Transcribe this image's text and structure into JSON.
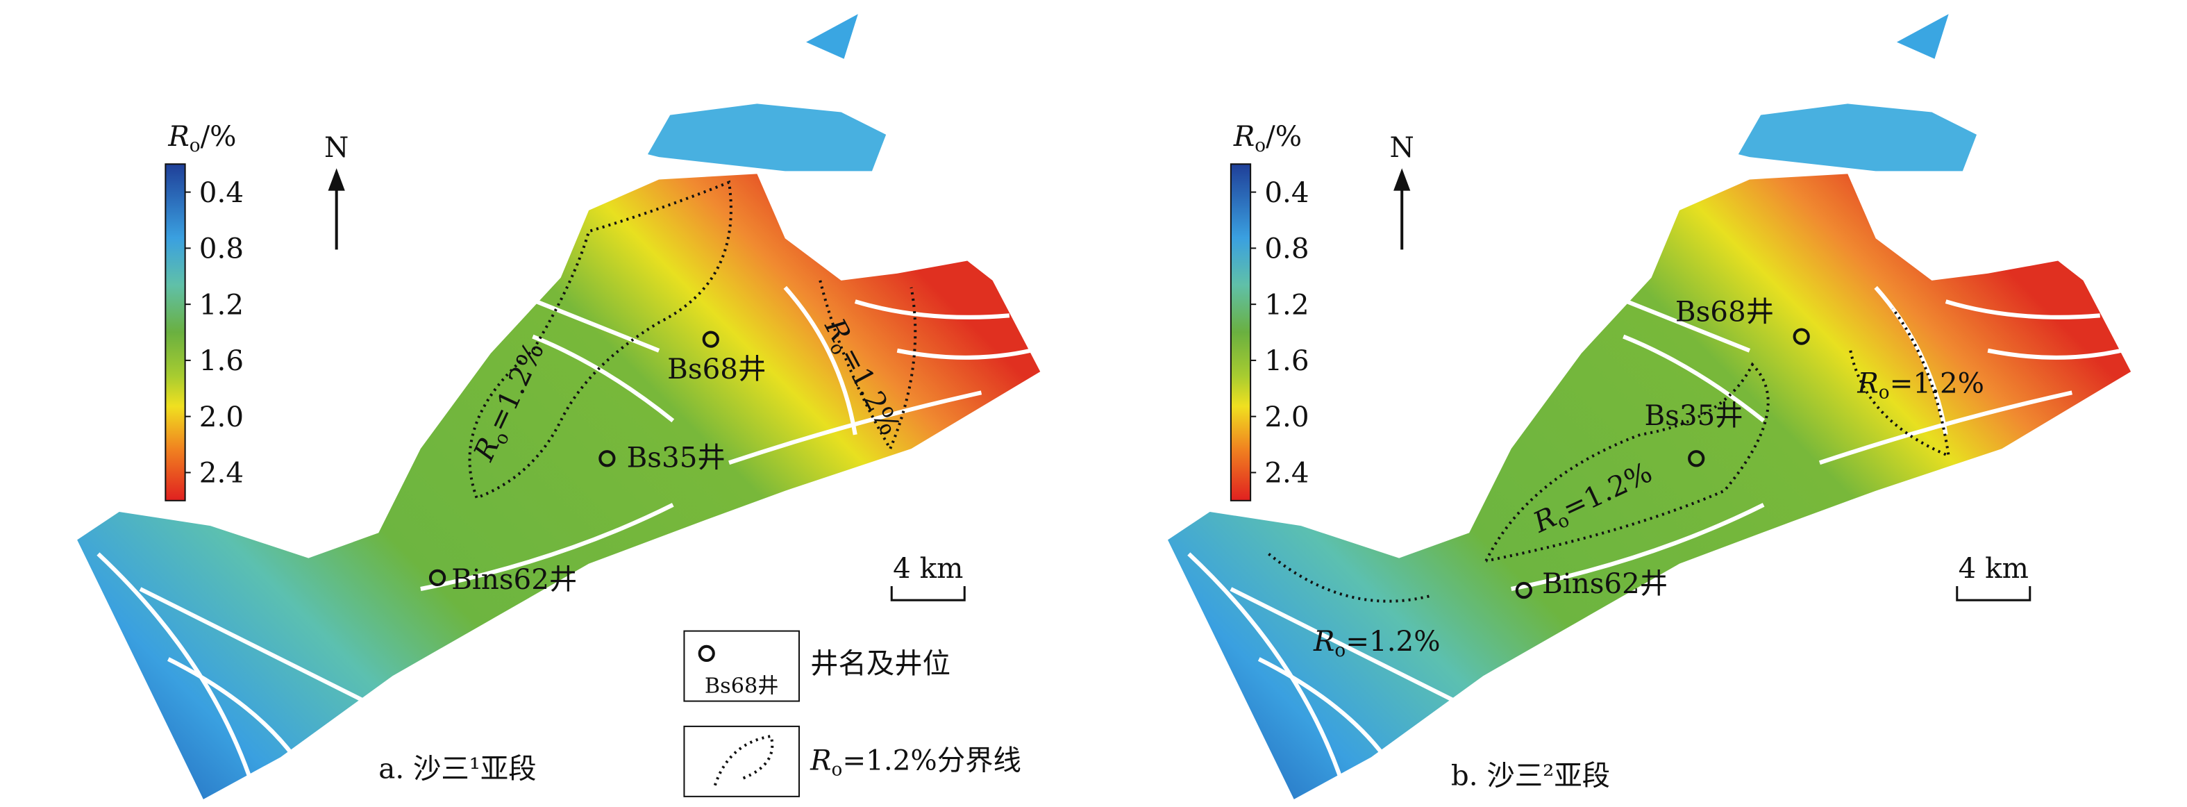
{
  "panels": [
    {
      "colorbar": {
        "label": {
          "symbol": "R",
          "subscript": "o",
          "unit": "/%"
        },
        "ticks": [
          "0.4",
          "0.8",
          "1.2",
          "1.6",
          "2.0",
          "2.4"
        ]
      },
      "north": "N",
      "scale": "4 km",
      "wells": [
        "Bs68井",
        "Bs35井",
        "Bins62井"
      ],
      "contour_labels": [
        {
          "symbol": "R",
          "subscript": "o",
          "text": "=1.2%"
        },
        {
          "symbol": "R",
          "subscript": "o",
          "text": "=1.2%"
        }
      ],
      "caption": "a. 沙三¹亚段"
    },
    {
      "colorbar": {
        "label": {
          "symbol": "R",
          "subscript": "o",
          "unit": "/%"
        },
        "ticks": [
          "0.4",
          "0.8",
          "1.2",
          "1.6",
          "2.0",
          "2.4"
        ]
      },
      "north": "N",
      "scale": "4 km",
      "wells": [
        "Bs68井",
        "Bs35井",
        "Bins62井"
      ],
      "contour_labels": [
        {
          "symbol": "R",
          "subscript": "o",
          "text": "=1.2%"
        },
        {
          "symbol": "R",
          "subscript": "o",
          "text": "=1.2%"
        },
        {
          "symbol": "R",
          "subscript": "o",
          "text": "=1.2%"
        }
      ],
      "caption": "b. 沙三²亚段"
    }
  ],
  "legend": {
    "well": {
      "sample": "Bs68井",
      "label": "井名及井位"
    },
    "boundary": {
      "symbol": "R",
      "subscript": "o",
      "text": "=1.2%分界线"
    }
  }
}
